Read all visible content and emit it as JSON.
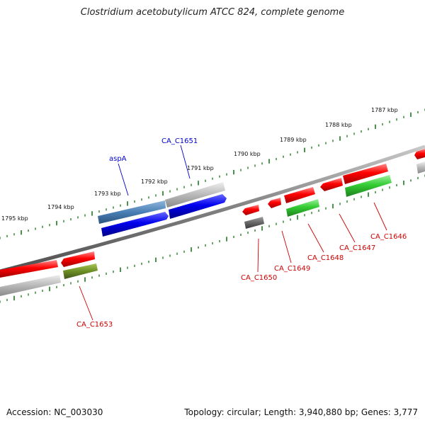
{
  "title": "Clostridium acetobutylicum ATCC 824, complete genome",
  "footer": {
    "accession": "Accession: NC_003030",
    "summary": "Topology: circular; Length: 3,940,880 bp; Genes: 3,777"
  },
  "ruler_labels": [
    "1795 kbp",
    "1794 kbp",
    "1793 kbp",
    "1792 kbp",
    "1791 kbp",
    "1790 kbp",
    "1789 kbp",
    "1788 kbp",
    "1787 kbp"
  ],
  "gene_labels": {
    "aspA": "aspA",
    "CA_C1651": "CA_C1651",
    "CA_C1653": "CA_C1653",
    "CA_C1650": "CA_C1650",
    "CA_C1649": "CA_C1649",
    "CA_C1648": "CA_C1648",
    "CA_C1647": "CA_C1647",
    "CA_C1646": "CA_C1646"
  },
  "colors": {
    "ruler": "#1a7a1a",
    "backbone": "#808080",
    "red": "#ff0000",
    "blue": "#0000ee",
    "steelblue": "#4a7fb5",
    "gray": "#b8b8b8",
    "darkgray": "#666666",
    "green": "#33cc33",
    "olive": "#6b8e23",
    "label_red": "#cc0000",
    "label_blue": "#0000cc"
  }
}
